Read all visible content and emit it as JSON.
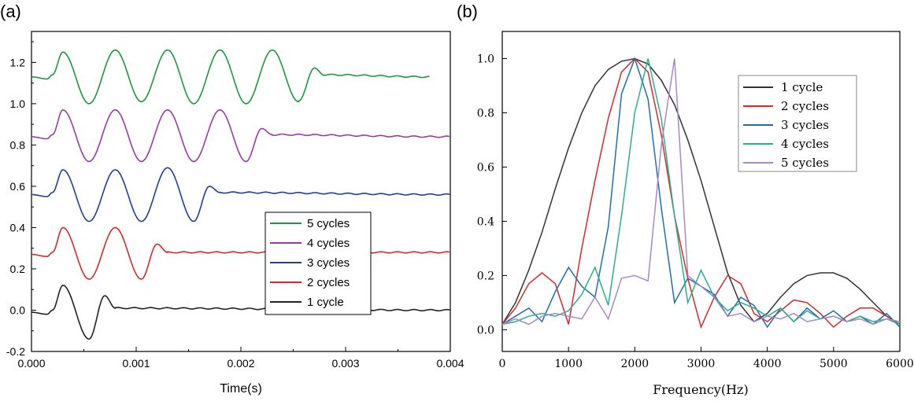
{
  "chart_data": [
    {
      "type": "line",
      "panel_label": "(a)",
      "xlabel": "Time(s)",
      "ylabel": "",
      "xlim": [
        0,
        0.004
      ],
      "ylim": [
        -0.2,
        1.35
      ],
      "x_ticks": [
        "0.000",
        "0.001",
        "0.002",
        "0.003",
        "0.004"
      ],
      "y_ticks": [
        "-0.2",
        "0.0",
        "0.2",
        "0.4",
        "0.6",
        "0.8",
        "1.0",
        "1.2"
      ],
      "legend_position": "lower-right",
      "grid": false,
      "series": [
        {
          "name": "5 cycles",
          "color": "#1a9a3a",
          "offset": 1.13,
          "cycles": 5,
          "x": [
            0,
            0.00015,
            0.0002,
            0.0003,
            0.00055,
            0.0008,
            0.00105,
            0.0013,
            0.00155,
            0.0018,
            0.00205,
            0.0023,
            0.00255,
            0.0027,
            0.0028,
            0.0038
          ],
          "y": [
            1.13,
            1.12,
            1.14,
            1.25,
            1.0,
            1.26,
            1.01,
            1.26,
            1.0,
            1.26,
            1.0,
            1.26,
            1.01,
            1.17,
            1.14,
            1.13
          ]
        },
        {
          "name": "4 cycles",
          "color": "#9a3ba6",
          "offset": 0.84,
          "cycles": 4,
          "x": [
            0,
            0.00015,
            0.0002,
            0.0003,
            0.00055,
            0.0008,
            0.00105,
            0.0013,
            0.00155,
            0.0018,
            0.00205,
            0.0022,
            0.0023,
            0.004
          ],
          "y": [
            0.84,
            0.83,
            0.85,
            0.97,
            0.72,
            0.97,
            0.72,
            0.97,
            0.72,
            0.97,
            0.72,
            0.88,
            0.85,
            0.84
          ]
        },
        {
          "name": "3 cycles",
          "color": "#1f3f9a",
          "offset": 0.56,
          "cycles": 3,
          "x": [
            0,
            0.00015,
            0.0002,
            0.0003,
            0.00055,
            0.0008,
            0.00105,
            0.0013,
            0.00155,
            0.0017,
            0.0018,
            0.004
          ],
          "y": [
            0.56,
            0.55,
            0.57,
            0.68,
            0.43,
            0.68,
            0.43,
            0.69,
            0.43,
            0.6,
            0.57,
            0.56
          ]
        },
        {
          "name": "2 cycles",
          "color": "#d42a2a",
          "offset": 0.28,
          "cycles": 2,
          "x": [
            0,
            0.00015,
            0.0002,
            0.0003,
            0.00055,
            0.0008,
            0.00105,
            0.0012,
            0.0013,
            0.004
          ],
          "y": [
            0.27,
            0.26,
            0.28,
            0.4,
            0.15,
            0.4,
            0.15,
            0.32,
            0.28,
            0.28
          ]
        },
        {
          "name": "1 cycle",
          "color": "#222222",
          "offset": 0.0,
          "cycles": 1,
          "x": [
            0,
            0.00015,
            0.0002,
            0.0003,
            0.00055,
            0.0007,
            0.0008,
            0.004
          ],
          "y": [
            -0.01,
            -0.02,
            0.0,
            0.12,
            -0.14,
            0.07,
            0.01,
            0.0
          ]
        }
      ]
    },
    {
      "type": "line",
      "panel_label": "(b)",
      "xlabel": "Frequency(Hz)",
      "ylabel": "",
      "xlim": [
        0,
        6000
      ],
      "ylim": [
        -0.08,
        1.1
      ],
      "x_ticks": [
        "0",
        "1000",
        "2000",
        "3000",
        "4000",
        "5000",
        "6000"
      ],
      "y_ticks": [
        "0.0",
        "0.2",
        "0.4",
        "0.6",
        "0.8",
        "1.0"
      ],
      "legend_position": "top-right",
      "grid": false,
      "x": [
        0,
        200,
        400,
        600,
        800,
        1000,
        1200,
        1400,
        1600,
        1800,
        2000,
        2200,
        2400,
        2600,
        2800,
        3000,
        3200,
        3400,
        3600,
        3800,
        4000,
        4200,
        4400,
        4600,
        4800,
        5000,
        5200,
        5400,
        5600,
        5800,
        6000
      ],
      "series": [
        {
          "name": "1 cycle",
          "color": "#333333",
          "values": [
            0.02,
            0.1,
            0.22,
            0.36,
            0.52,
            0.67,
            0.8,
            0.9,
            0.96,
            0.99,
            1.0,
            0.98,
            0.92,
            0.83,
            0.7,
            0.55,
            0.38,
            0.21,
            0.09,
            0.03,
            0.06,
            0.12,
            0.17,
            0.2,
            0.21,
            0.21,
            0.19,
            0.15,
            0.1,
            0.05,
            0.02
          ]
        },
        {
          "name": "2 cycles",
          "color": "#d42a2a",
          "values": [
            0.02,
            0.08,
            0.17,
            0.21,
            0.17,
            0.02,
            0.3,
            0.55,
            0.78,
            0.95,
            1.0,
            0.95,
            0.72,
            0.42,
            0.19,
            0.01,
            0.12,
            0.2,
            0.17,
            0.06,
            0.03,
            0.07,
            0.11,
            0.1,
            0.06,
            0.01,
            0.05,
            0.08,
            0.08,
            0.05,
            0.02
          ]
        },
        {
          "name": "3 cycles",
          "color": "#1f6fb0",
          "values": [
            0.02,
            0.05,
            0.08,
            0.03,
            0.14,
            0.23,
            0.16,
            0.12,
            0.38,
            0.87,
            1.0,
            0.85,
            0.45,
            0.1,
            0.19,
            0.16,
            0.13,
            0.05,
            0.12,
            0.09,
            0.01,
            0.08,
            0.03,
            0.08,
            0.04,
            0.07,
            0.03,
            0.05,
            0.02,
            0.06,
            0.01
          ]
        },
        {
          "name": "4 cycles",
          "color": "#2bb08a",
          "values": [
            0.02,
            0.03,
            0.05,
            0.06,
            0.05,
            0.07,
            0.13,
            0.23,
            0.09,
            0.42,
            0.8,
            1.0,
            0.78,
            0.42,
            0.1,
            0.22,
            0.12,
            0.07,
            0.1,
            0.08,
            0.05,
            0.08,
            0.03,
            0.07,
            0.04,
            0.05,
            0.03,
            0.05,
            0.03,
            0.04,
            0.02
          ]
        },
        {
          "name": "5 cycles",
          "color": "#a58ac8",
          "values": [
            0.02,
            0.04,
            0.02,
            0.05,
            0.06,
            0.05,
            0.04,
            0.12,
            0.04,
            0.19,
            0.2,
            0.18,
            0.68,
            1.0,
            0.2,
            0.16,
            0.12,
            0.05,
            0.06,
            0.03,
            0.05,
            0.04,
            0.06,
            0.03,
            0.04,
            0.05,
            0.03,
            0.04,
            0.02,
            0.04,
            0.03
          ]
        }
      ]
    }
  ]
}
